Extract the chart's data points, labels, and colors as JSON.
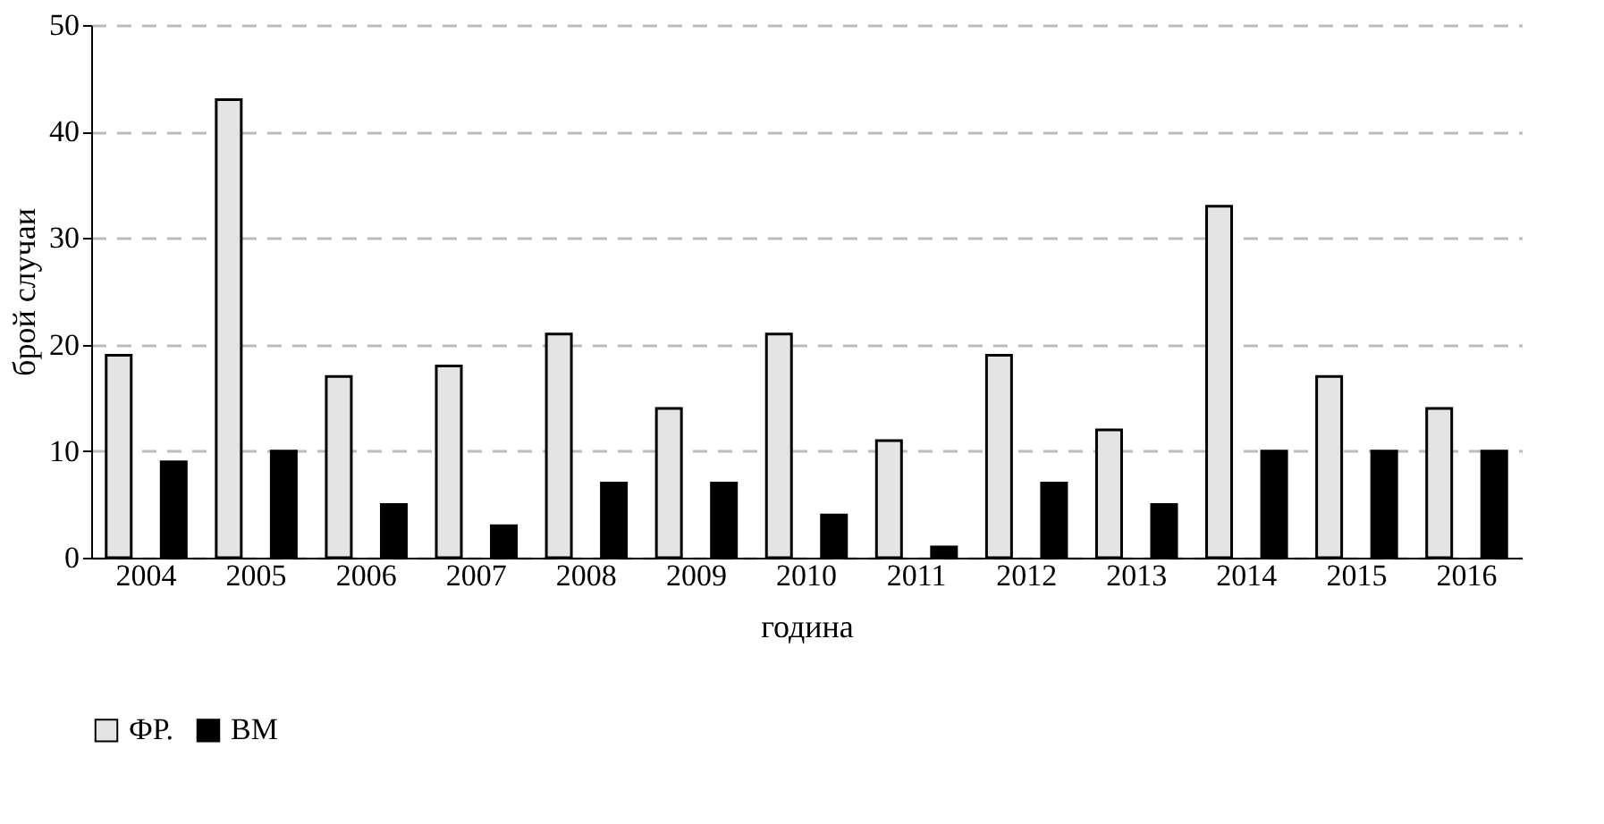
{
  "chart_data": {
    "type": "bar",
    "xlabel": "година",
    "ylabel": "брой случаи",
    "categories": [
      "2004",
      "2005",
      "2006",
      "2007",
      "2008",
      "2009",
      "2010",
      "2011",
      "2012",
      "2013",
      "2014",
      "2015",
      "2016"
    ],
    "series": [
      {
        "name": "ФР.",
        "color": "#e4e4e4",
        "values": [
          19,
          43,
          17,
          18,
          21,
          14,
          21,
          11,
          19,
          12,
          33,
          17,
          14
        ]
      },
      {
        "name": "ВМ",
        "color": "#000000",
        "values": [
          9,
          10,
          5,
          3,
          7,
          7,
          4,
          1,
          7,
          5,
          10,
          10,
          10
        ]
      }
    ],
    "ylim": [
      0,
      50
    ],
    "yticks": [
      0,
      10,
      20,
      30,
      40,
      50
    ],
    "grid": "y",
    "legend": "bottom"
  }
}
